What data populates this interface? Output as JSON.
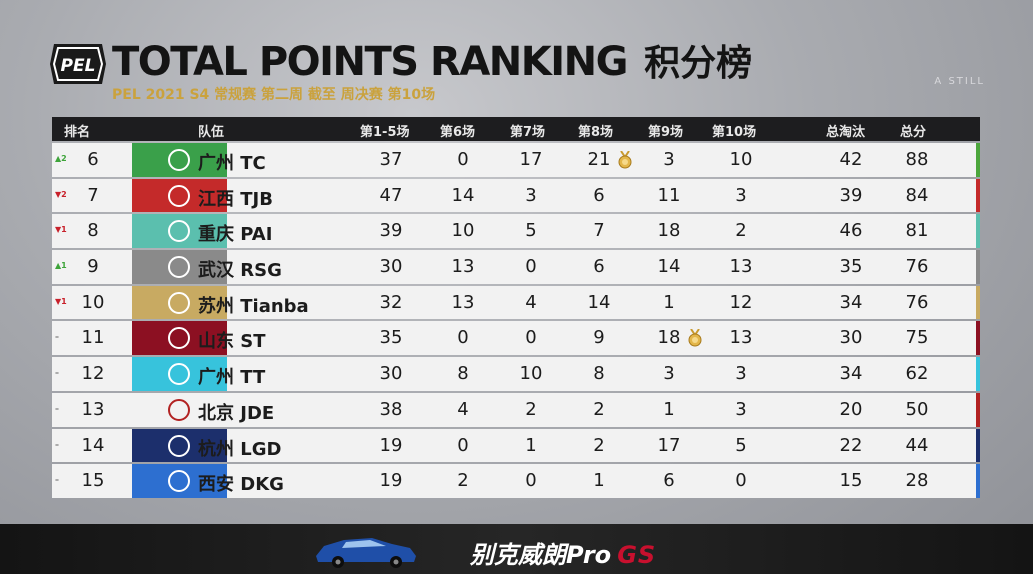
{
  "header": {
    "logo_text": "PEL",
    "title_en": "TOTAL POINTS RANKING",
    "title_cn": "积分榜",
    "subtitle": "PEL 2021 S4 常规赛 第二周 截至 周决赛 第10场"
  },
  "watermark": "A STILL",
  "columns": [
    "排名",
    "队伍",
    "第1-5场",
    "第6场",
    "第7场",
    "第8场",
    "第9场",
    "第10场",
    "总淘汰",
    "总分"
  ],
  "rows": [
    {
      "move": "▲2",
      "move_color": "#3ea43a",
      "rank": "6",
      "logo": "tc-logo",
      "logo_bg": "#3aa04a",
      "team": "广州 TC",
      "g15": "37",
      "g6": "0",
      "g7": "17",
      "g8": "21",
      "g9": "3",
      "g10": "10",
      "kills": "42",
      "total": "88",
      "stripe": "#4ca63c",
      "medal_game": "g8"
    },
    {
      "move": "▼2",
      "move_color": "#c8202a",
      "rank": "7",
      "logo": "tjb-logo",
      "logo_bg": "#c42a2a",
      "team": "江西 TJB",
      "g15": "47",
      "g6": "14",
      "g7": "3",
      "g8": "6",
      "g9": "11",
      "g10": "3",
      "kills": "39",
      "total": "84",
      "stripe": "#c42a2a"
    },
    {
      "move": "▼1",
      "move_color": "#c8202a",
      "rank": "8",
      "logo": "pai-logo",
      "logo_bg": "#5bbfae",
      "team": "重庆 PAI",
      "g15": "39",
      "g6": "10",
      "g7": "5",
      "g8": "7",
      "g9": "18",
      "g10": "2",
      "kills": "46",
      "total": "81",
      "stripe": "#5bbfae"
    },
    {
      "move": "▲1",
      "move_color": "#3ea43a",
      "rank": "9",
      "logo": "rsg-logo",
      "logo_bg": "#8a8a8a",
      "team": "武汉 RSG",
      "g15": "30",
      "g6": "13",
      "g7": "0",
      "g8": "6",
      "g9": "14",
      "g10": "13",
      "kills": "35",
      "total": "76",
      "stripe": "#8a8a8a"
    },
    {
      "move": "▼1",
      "move_color": "#c8202a",
      "rank": "10",
      "logo": "tianba-logo",
      "logo_bg": "#c8aa62",
      "team": "苏州 Tianba",
      "g15": "32",
      "g6": "13",
      "g7": "4",
      "g8": "14",
      "g9": "1",
      "g10": "12",
      "kills": "34",
      "total": "76",
      "stripe": "#c8aa62"
    },
    {
      "move": "–",
      "move_color": "#666666",
      "rank": "11",
      "logo": "st-logo",
      "logo_bg": "#8c1022",
      "team": "山东 ST",
      "g15": "35",
      "g6": "0",
      "g7": "0",
      "g8": "9",
      "g9": "18",
      "g10": "13",
      "kills": "30",
      "total": "75",
      "stripe": "#8c1022",
      "medal_game": "g9"
    },
    {
      "move": "–",
      "move_color": "#666666",
      "rank": "12",
      "logo": "tt-logo",
      "logo_bg": "#37c3dc",
      "team": "广州 TT",
      "g15": "30",
      "g6": "8",
      "g7": "10",
      "g8": "8",
      "g9": "3",
      "g10": "3",
      "kills": "34",
      "total": "62",
      "stripe": "#37c3dc"
    },
    {
      "move": "–",
      "move_color": "#666666",
      "rank": "13",
      "logo": "jde-logo",
      "logo_bg": "#f2f2f2",
      "team": "北京 JDE",
      "g15": "38",
      "g6": "4",
      "g7": "2",
      "g8": "2",
      "g9": "1",
      "g10": "3",
      "kills": "20",
      "total": "50",
      "stripe": "#b22222"
    },
    {
      "move": "–",
      "move_color": "#666666",
      "rank": "14",
      "logo": "lgd-logo",
      "logo_bg": "#1c2f6c",
      "team": "杭州 LGD",
      "g15": "19",
      "g6": "0",
      "g7": "1",
      "g8": "2",
      "g9": "17",
      "g10": "5",
      "kills": "22",
      "total": "44",
      "stripe": "#1c2f6c"
    },
    {
      "move": "–",
      "move_color": "#666666",
      "rank": "15",
      "logo": "dkg-logo",
      "logo_bg": "#2d6fd0",
      "team": "西安 DKG",
      "g15": "19",
      "g6": "2",
      "g7": "0",
      "g8": "1",
      "g9": "6",
      "g10": "0",
      "kills": "15",
      "total": "28",
      "stripe": "#2d6fd0"
    }
  ],
  "banner": {
    "ad_text": "别克威朗Pro",
    "ad_suffix": "GS"
  }
}
